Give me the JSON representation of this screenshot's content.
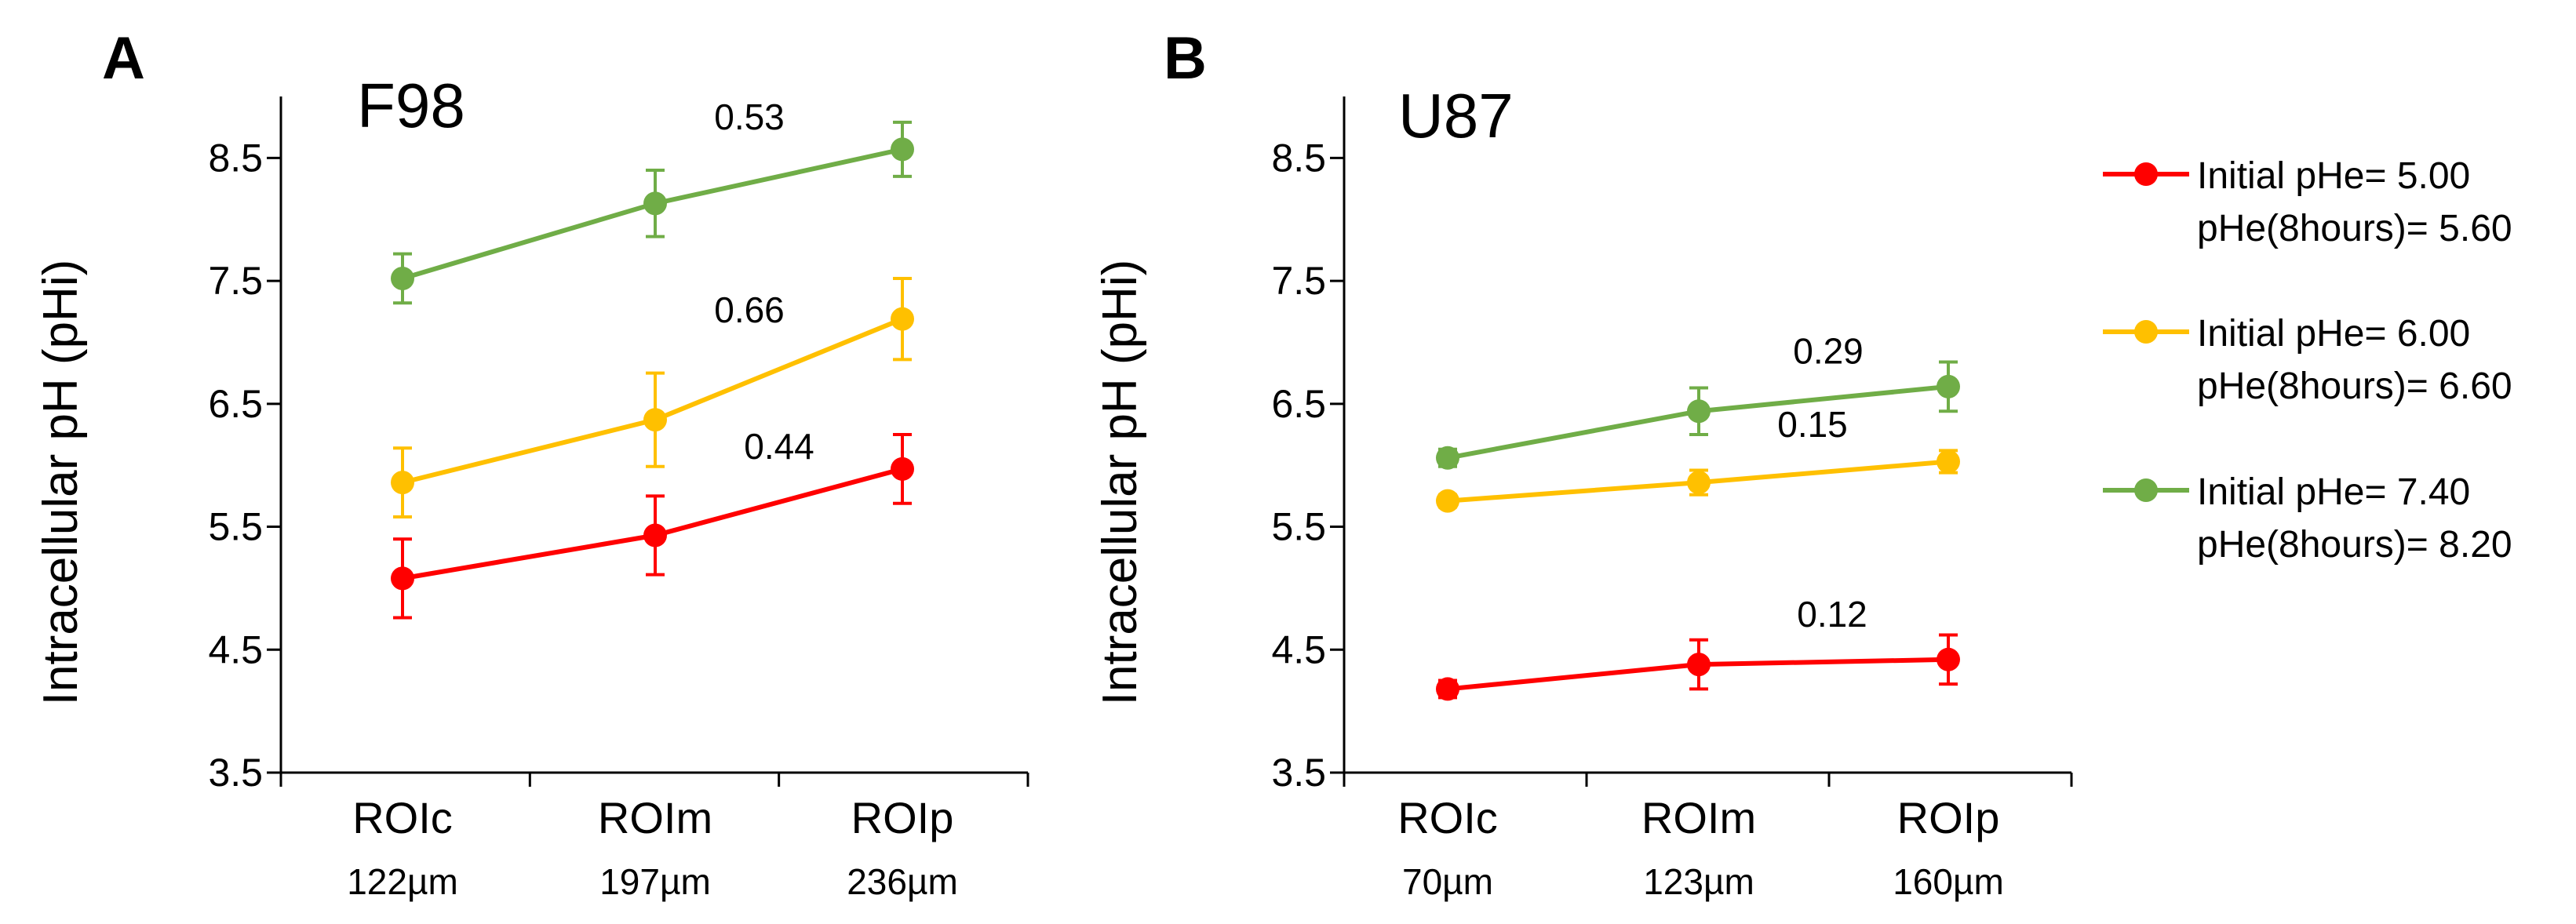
{
  "chart_data": [
    {
      "panel_label": "A",
      "type": "line",
      "title": "F98",
      "ylabel": "Intracellular pH (pHi)",
      "ylim": [
        3.5,
        9.0
      ],
      "yticks": [
        "3.5",
        "4.5",
        "5.5",
        "6.5",
        "7.5",
        "8.5"
      ],
      "categories": [
        "ROIc",
        "ROIm",
        "ROIp"
      ],
      "category_sublabels": [
        "122µm",
        "197µm",
        "236µm"
      ],
      "series": [
        {
          "color": "#ff0000",
          "values": [
            5.08,
            5.43,
            5.97
          ],
          "errors": [
            0.32,
            0.32,
            0.28
          ],
          "annotation": "0.44"
        },
        {
          "color": "#ffc000",
          "values": [
            5.86,
            6.37,
            7.19
          ],
          "errors": [
            0.28,
            0.38,
            0.33
          ],
          "annotation": "0.66"
        },
        {
          "color": "#70ad47",
          "values": [
            7.52,
            8.13,
            8.57
          ],
          "errors": [
            0.2,
            0.27,
            0.22
          ],
          "annotation": "0.53"
        }
      ]
    },
    {
      "panel_label": "B",
      "type": "line",
      "title": "U87",
      "ylabel": "Intracellular pH (pHi)",
      "ylim": [
        3.5,
        9.0
      ],
      "yticks": [
        "3.5",
        "4.5",
        "5.5",
        "6.5",
        "7.5",
        "8.5"
      ],
      "categories": [
        "ROIc",
        "ROIm",
        "ROIp"
      ],
      "category_sublabels": [
        "70µm",
        "123µm",
        "160µm"
      ],
      "series": [
        {
          "color": "#ff0000",
          "values": [
            4.18,
            4.38,
            4.42
          ],
          "errors": [
            0.07,
            0.2,
            0.2
          ],
          "annotation": "0.12"
        },
        {
          "color": "#ffc000",
          "values": [
            5.71,
            5.86,
            6.03
          ],
          "errors": [
            0.05,
            0.1,
            0.09
          ],
          "annotation": "0.15"
        },
        {
          "color": "#70ad47",
          "values": [
            6.06,
            6.44,
            6.64
          ],
          "errors": [
            0.07,
            0.19,
            0.2
          ],
          "annotation": "0.29"
        }
      ]
    }
  ],
  "legend": {
    "position": "right",
    "entries": [
      {
        "color": "#ff0000",
        "line1": "Initial pHe= 5.00",
        "line2": "pHe(8hours)= 5.60"
      },
      {
        "color": "#ffc000",
        "line1": "Initial pHe= 6.00",
        "line2": "pHe(8hours)= 6.60"
      },
      {
        "color": "#70ad47",
        "line1": "Initial pHe= 7.40",
        "line2": "pHe(8hours)= 8.20"
      }
    ]
  }
}
